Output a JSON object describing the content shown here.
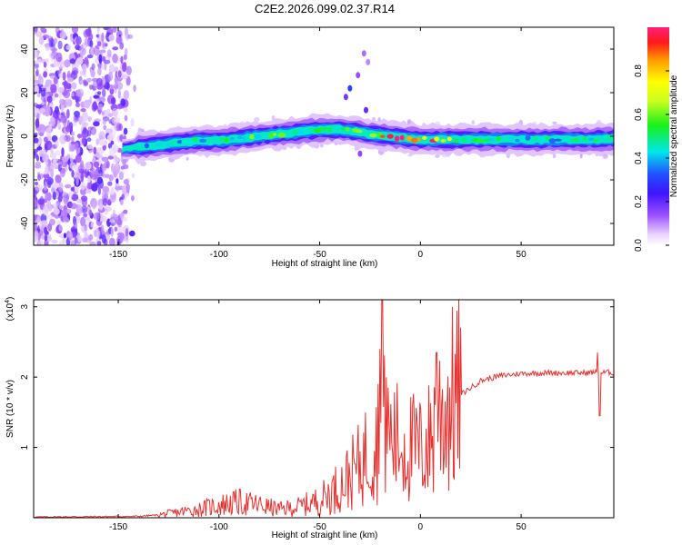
{
  "title": "C2E2.2026.099.02.37.R14",
  "chart_data": [
    {
      "type": "heatmap",
      "name": "spectrogram",
      "xlabel": "Height of straight line (km)",
      "ylabel": "Frequency (Hz)",
      "xlim": [
        -192,
        96
      ],
      "ylim": [
        -50,
        50
      ],
      "xticks": [
        -150,
        -100,
        -50,
        0,
        50
      ],
      "yticks": [
        -40,
        -20,
        0,
        20,
        40
      ],
      "ridge": {
        "x": [
          -148,
          -140,
          -130,
          -120,
          -110,
          -100,
          -90,
          -80,
          -70,
          -60,
          -50,
          -40,
          -35,
          -30,
          -25,
          -20,
          -15,
          -10,
          -5,
          0,
          10,
          20,
          40,
          60,
          80,
          95
        ],
        "f": [
          -6,
          -5,
          -4,
          -3,
          -2,
          -2,
          -1,
          0,
          1,
          2,
          3,
          3,
          2.5,
          2,
          1,
          0.5,
          0,
          -0.5,
          -1,
          -1.5,
          -1.5,
          -1.5,
          -1.5,
          -1.5,
          -1.5,
          -1.2
        ],
        "amplitude": [
          0.3,
          0.35,
          0.4,
          0.4,
          0.45,
          0.45,
          0.5,
          0.5,
          0.5,
          0.55,
          0.55,
          0.5,
          0.5,
          0.5,
          0.5,
          0.7,
          0.85,
          0.9,
          0.8,
          0.9,
          0.85,
          0.5,
          0.45,
          0.45,
          0.45,
          0.5
        ]
      },
      "noise_region_x": [
        -192,
        -145
      ],
      "colorbar": {
        "label": "Normalized spectral amplitude",
        "ticks": [
          "0.0",
          "0.2",
          "0.4",
          "0.6",
          "0.8"
        ],
        "tick_values": [
          0.0,
          0.2,
          0.4,
          0.6,
          0.8
        ],
        "range": [
          0,
          1
        ]
      }
    },
    {
      "type": "line",
      "name": "snr",
      "xlabel": "Height of straight line (km)",
      "ylabel": "SNR (10 * v/v)",
      "y_multiplier": "(x10^4)",
      "xlim": [
        -192,
        96
      ],
      "ylim": [
        0,
        3.1
      ],
      "xticks": [
        -150,
        -100,
        -50,
        0,
        50
      ],
      "yticks": [
        1,
        2,
        3
      ],
      "color": "#e8302e",
      "envelope": {
        "x": [
          -192,
          -140,
          -130,
          -120,
          -110,
          -100,
          -90,
          -80,
          -70,
          -60,
          -50,
          -40,
          -35,
          -30,
          -25,
          -20,
          -18,
          -15,
          -10,
          -5,
          0,
          5,
          8,
          10,
          20,
          30,
          40,
          50,
          60,
          80,
          88,
          90,
          93,
          96
        ],
        "y": [
          0.01,
          0.02,
          0.04,
          0.08,
          0.12,
          0.18,
          0.22,
          0.18,
          0.12,
          0.16,
          0.25,
          0.45,
          0.6,
          0.75,
          1.0,
          1.2,
          1.3,
          1.15,
          1.05,
          1.0,
          0.95,
          1.1,
          1.4,
          1.5,
          1.75,
          1.95,
          2.02,
          2.05,
          2.06,
          2.06,
          2.07,
          2.06,
          2.07,
          2.06
        ]
      },
      "spikes": [
        {
          "x": -19,
          "y": 3.1
        },
        {
          "x": -20,
          "y": 2.4
        },
        {
          "x": -17,
          "y": 2.0
        },
        {
          "x": 8,
          "y": 2.35
        },
        {
          "x": 88,
          "y": 2.35
        },
        {
          "x": 89,
          "y": 1.45
        }
      ]
    }
  ]
}
